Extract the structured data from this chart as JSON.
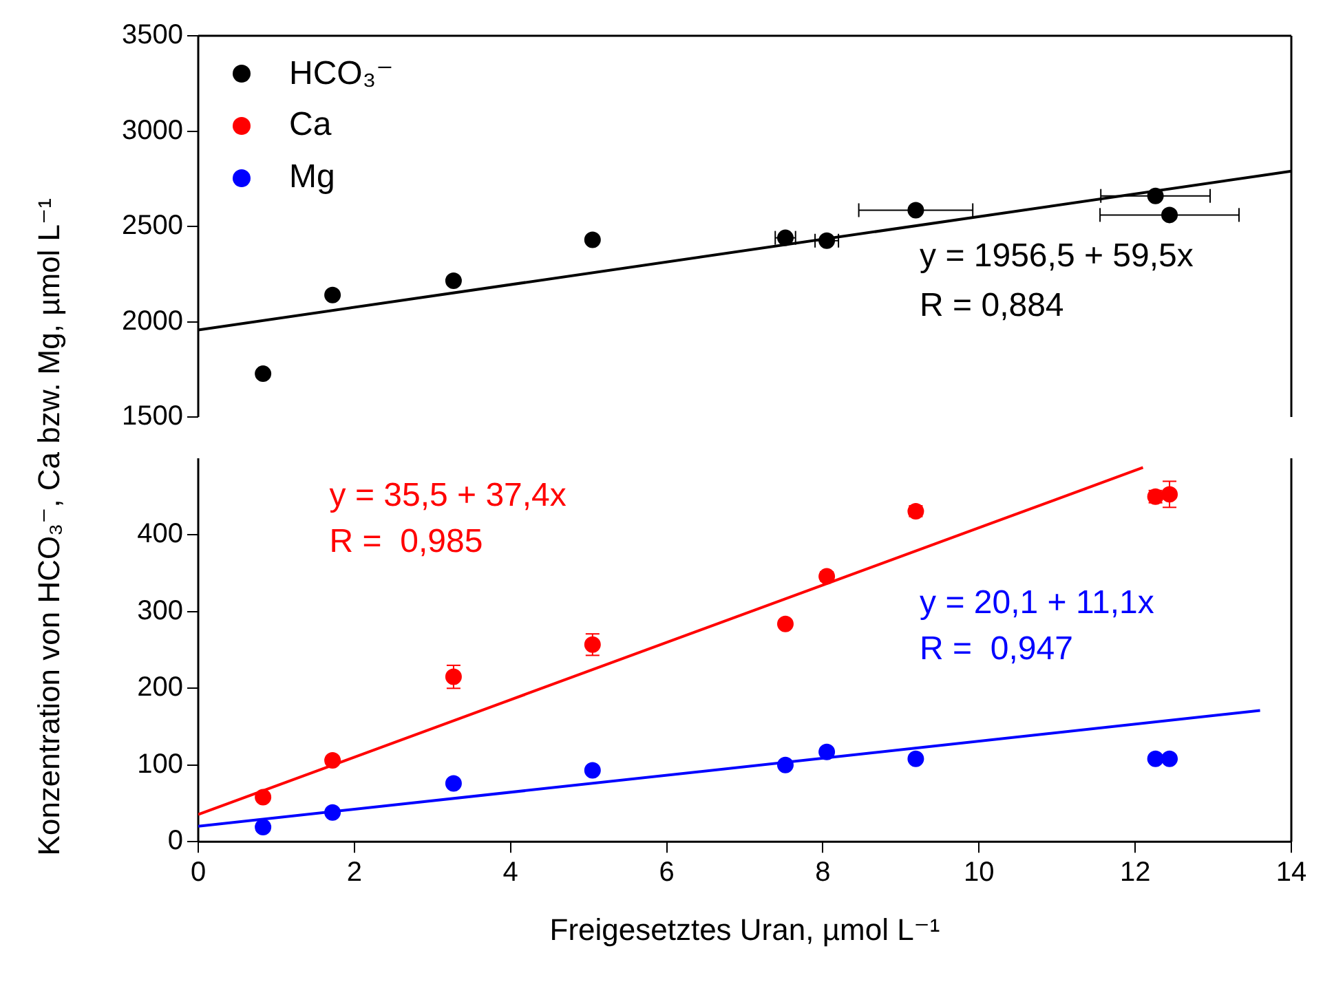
{
  "chart_data": [
    {
      "type": "scatter",
      "ylabel": "Konzentration von HCO₃⁻, Ca bzw. Mg, µmol L⁻¹",
      "xlim": [
        0,
        14
      ],
      "xticks": [
        0,
        2,
        4,
        6,
        8,
        10,
        12,
        14
      ],
      "ylim": [
        1500,
        3500
      ],
      "yticks": [
        1500,
        2000,
        2500,
        3000,
        3500
      ],
      "tick_labels": "y",
      "legend": "top left",
      "marker": "circle",
      "annotations": [
        "y = 1956,5 + 59,5x",
        "R = 0,884"
      ],
      "series": [
        {
          "name": "HCO₃⁻",
          "type": "scatter",
          "color": "#000000",
          "x": [
            0.83,
            1.72,
            3.27,
            5.05,
            7.52,
            8.05,
            9.19,
            12.26,
            12.44
          ],
          "values": [
            1727,
            2140,
            2215,
            2430,
            2440,
            2425,
            2585,
            2660,
            2560
          ],
          "xerrors": [
            null,
            null,
            null,
            null,
            0.13,
            0.15,
            0.73,
            0.7,
            0.89
          ]
        },
        {
          "type": "line",
          "color": "#000000",
          "marker": "none",
          "x": [
            0,
            14
          ],
          "values": [
            1956.5,
            2789.5
          ]
        }
      ]
    },
    {
      "type": "scatter",
      "xlabel": "Freigesetztes Uran, µmol L⁻¹",
      "xlim": [
        0,
        14
      ],
      "xticks": [
        0,
        2,
        4,
        6,
        8,
        10,
        12,
        14
      ],
      "ylim": [
        0,
        500
      ],
      "yticks": [
        0,
        100,
        200,
        300,
        400
      ],
      "legend": "top left",
      "marker": "circle",
      "annotations": [
        "y = 35,5 + 37,4x",
        "R =  0,985",
        "y = 20,1 + 11,1x",
        "R =  0,947"
      ],
      "series": [
        {
          "name": "Ca",
          "type": "scatter",
          "color": "#ff0000",
          "x": [
            0.83,
            1.72,
            3.27,
            5.05,
            7.52,
            8.05,
            9.19,
            12.26,
            12.44
          ],
          "values": [
            58,
            106,
            215,
            257,
            284,
            346,
            431,
            450,
            453
          ],
          "errors": [
            4,
            5,
            15,
            14,
            5,
            6,
            7,
            8,
            17
          ]
        },
        {
          "type": "line",
          "color": "#ff0000",
          "marker": "none",
          "x": [
            0,
            12.1
          ],
          "values": [
            35.5,
            488
          ]
        },
        {
          "name": "Mg",
          "type": "scatter",
          "color": "#0000ff",
          "x": [
            0.83,
            1.72,
            3.27,
            5.05,
            7.52,
            8.05,
            9.19,
            12.26,
            12.44
          ],
          "values": [
            19,
            38,
            76,
            93,
            100,
            117,
            108,
            108,
            108
          ]
        },
        {
          "type": "line",
          "color": "#0000ff",
          "marker": "none",
          "x": [
            0,
            13.6
          ],
          "values": [
            20.1,
            171.1
          ]
        }
      ]
    }
  ]
}
